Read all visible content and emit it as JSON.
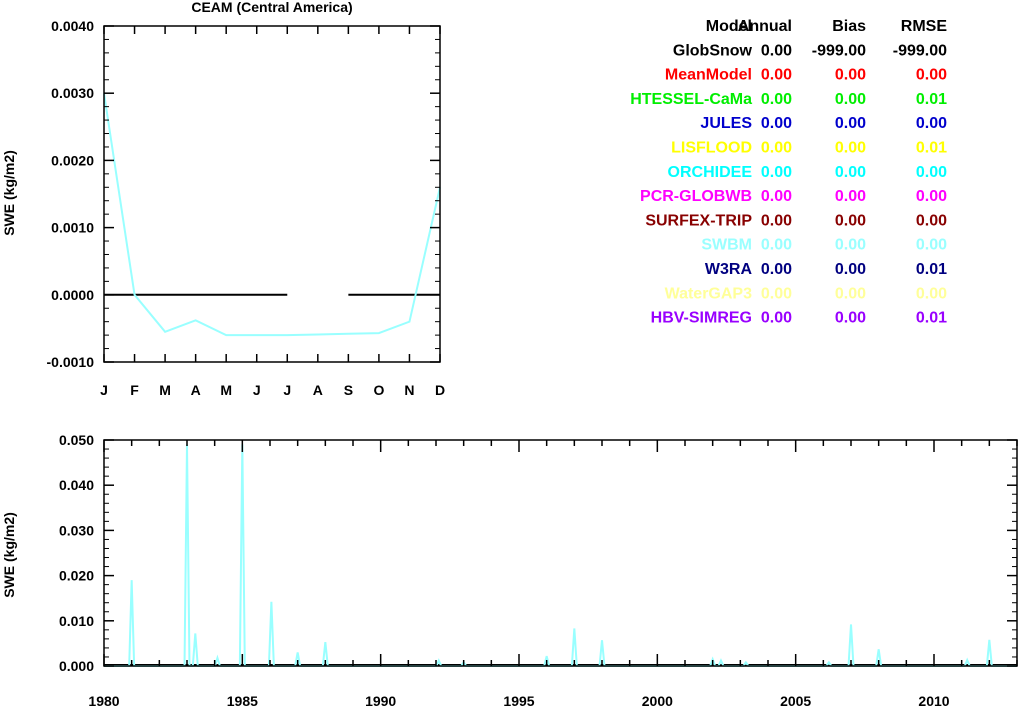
{
  "colors": {
    "axis": "#000000",
    "zero_line": "#000000",
    "swbm": "#99ffff"
  },
  "legend_table": {
    "headers": [
      "Model",
      "Annual",
      "Bias",
      "RMSE"
    ],
    "rows": [
      {
        "model": "GlobSnow",
        "annual": "0.00",
        "bias": "-999.00",
        "rmse": "-999.00",
        "color": "#000000"
      },
      {
        "model": "MeanModel",
        "annual": "0.00",
        "bias": "0.00",
        "rmse": "0.00",
        "color": "#ff0000"
      },
      {
        "model": "HTESSEL-CaMa",
        "annual": "0.00",
        "bias": "0.00",
        "rmse": "0.01",
        "color": "#00ee00"
      },
      {
        "model": "JULES",
        "annual": "0.00",
        "bias": "0.00",
        "rmse": "0.00",
        "color": "#0000cc"
      },
      {
        "model": "LISFLOOD",
        "annual": "0.00",
        "bias": "0.00",
        "rmse": "0.01",
        "color": "#ffff00"
      },
      {
        "model": "ORCHIDEE",
        "annual": "0.00",
        "bias": "0.00",
        "rmse": "0.00",
        "color": "#00ffff"
      },
      {
        "model": "PCR-GLOBWB",
        "annual": "0.00",
        "bias": "0.00",
        "rmse": "0.00",
        "color": "#ff00ff"
      },
      {
        "model": "SURFEX-TRIP",
        "annual": "0.00",
        "bias": "0.00",
        "rmse": "0.00",
        "color": "#880000"
      },
      {
        "model": "SWBM",
        "annual": "0.00",
        "bias": "0.00",
        "rmse": "0.00",
        "color": "#99ffff"
      },
      {
        "model": "W3RA",
        "annual": "0.00",
        "bias": "0.00",
        "rmse": "0.01",
        "color": "#000080"
      },
      {
        "model": "WaterGAP3",
        "annual": "0.00",
        "bias": "0.00",
        "rmse": "0.00",
        "color": "#ffff99"
      },
      {
        "model": "HBV-SIMREG",
        "annual": "0.00",
        "bias": "0.00",
        "rmse": "0.01",
        "color": "#9900ff"
      }
    ]
  },
  "chart_data": [
    {
      "type": "line",
      "title": "CEAM (Central America)",
      "xlabel": "",
      "ylabel": "SWE (kg/m2)",
      "categories": [
        "J",
        "F",
        "M",
        "A",
        "M",
        "J",
        "J",
        "A",
        "S",
        "O",
        "N",
        "D"
      ],
      "ylim": [
        -0.001,
        0.004
      ],
      "yticks": [
        "0.0040",
        "0.0030",
        "0.0020",
        "0.0010",
        "0.0000",
        "-0.0010"
      ],
      "ytick_values": [
        0.004,
        0.003,
        0.002,
        0.001,
        0.0,
        -0.001
      ],
      "grid": false,
      "series": [
        {
          "name": "GlobSnow",
          "color": "#000000",
          "values": [
            0.0,
            0.0,
            0.0,
            0.0,
            0.0,
            0.0,
            0.0,
            null,
            0.0,
            0.0,
            0.0,
            0.0
          ]
        },
        {
          "name": "SWBM",
          "color": "#99ffff",
          "values": [
            0.003,
            0.0,
            -0.00055,
            -0.00038,
            -0.0006,
            -0.0006,
            -0.0006,
            -0.00059,
            -0.00058,
            -0.00057,
            -0.0004,
            0.0016
          ]
        }
      ]
    },
    {
      "type": "line",
      "title": "",
      "xlabel": "",
      "ylabel": "SWE (kg/m2)",
      "xlim": [
        1980,
        2013
      ],
      "xticks": [
        1980,
        1985,
        1990,
        1995,
        2000,
        2005,
        2010
      ],
      "ylim": [
        0,
        0.05
      ],
      "yticks": [
        "0.050",
        "0.040",
        "0.030",
        "0.020",
        "0.010",
        "0.000"
      ],
      "ytick_values": [
        0.05,
        0.04,
        0.03,
        0.02,
        0.01,
        0.0
      ],
      "grid": false,
      "series": [
        {
          "name": "SWBM",
          "color": "#99ffff",
          "peaks": [
            {
              "x": 1981.0,
              "y": 0.019
            },
            {
              "x": 1983.0,
              "y": 0.049
            },
            {
              "x": 1983.3,
              "y": 0.0072
            },
            {
              "x": 1984.1,
              "y": 0.0018
            },
            {
              "x": 1985.0,
              "y": 0.049
            },
            {
              "x": 1986.05,
              "y": 0.0142
            },
            {
              "x": 1987.0,
              "y": 0.003
            },
            {
              "x": 1988.0,
              "y": 0.0053
            },
            {
              "x": 1992.1,
              "y": 0.0012
            },
            {
              "x": 1993.0,
              "y": 0.0008
            },
            {
              "x": 1996.0,
              "y": 0.0022
            },
            {
              "x": 1997.0,
              "y": 0.0083
            },
            {
              "x": 1998.0,
              "y": 0.0057
            },
            {
              "x": 2002.0,
              "y": 0.0015
            },
            {
              "x": 2002.3,
              "y": 0.0012
            },
            {
              "x": 2003.2,
              "y": 0.0008
            },
            {
              "x": 2006.2,
              "y": 0.0008
            },
            {
              "x": 2007.0,
              "y": 0.0092
            },
            {
              "x": 2008.0,
              "y": 0.0037
            },
            {
              "x": 2011.2,
              "y": 0.0013
            },
            {
              "x": 2012.0,
              "y": 0.0058
            }
          ]
        }
      ]
    }
  ]
}
